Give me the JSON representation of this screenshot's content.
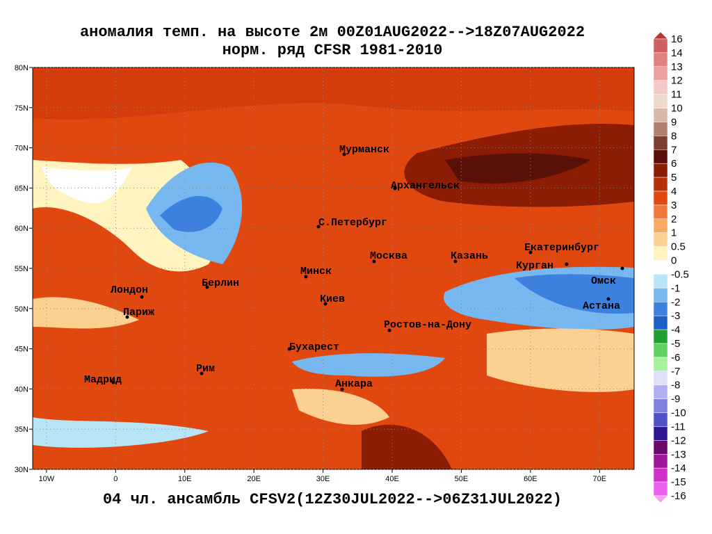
{
  "map": {
    "title": [
      "аномалия темп. на высоте 2м 00Z01AUG2022-->18Z07AUG2022",
      "норм. ряд CFSR 1981-2010"
    ],
    "caption": "04 чл. ансамбль CFSV2(12Z30JUL2022-->06Z31JUL2022)",
    "xlim": [
      -12,
      75
    ],
    "ylim": [
      30,
      80
    ],
    "xticks": [
      {
        "value": -10,
        "label": "10W"
      },
      0,
      {
        "value": 10,
        "label": "10E"
      },
      {
        "value": 20,
        "label": "20E"
      },
      {
        "value": 30,
        "label": "30E"
      },
      {
        "value": 40,
        "label": "40E"
      },
      {
        "value": 50,
        "label": "50E"
      },
      {
        "value": 60,
        "label": "60E"
      },
      {
        "value": 70,
        "label": "70E"
      }
    ],
    "yticks": [
      {
        "value": 30,
        "label": "30N"
      },
      {
        "value": 35,
        "label": "35N"
      },
      {
        "value": 40,
        "label": "40N"
      },
      {
        "value": 45,
        "label": "45N"
      },
      {
        "value": 50,
        "label": "50N"
      },
      {
        "value": 55,
        "label": "55N"
      },
      {
        "value": 60,
        "label": "60N"
      },
      {
        "value": 65,
        "label": "65N"
      },
      {
        "value": 70,
        "label": "70N"
      },
      {
        "value": 75,
        "label": "75N"
      },
      {
        "value": 80,
        "label": "80N"
      }
    ],
    "cities": [
      "Мурманск",
      "Архангельск",
      "С.Петербург",
      "Москва",
      "Казань",
      "Екатеринбург",
      "Курган",
      "Омск",
      "Астана",
      "Минск",
      "Берлин",
      "Лондон",
      "Париж",
      "Киев",
      "Ростов-на-Дону",
      "Бухарест",
      "Рим",
      "Мадрид",
      "Анкара"
    ],
    "colorbar": {
      "labels": [
        16,
        14,
        13,
        12,
        11,
        10,
        9,
        8,
        7,
        6,
        5,
        4,
        3,
        2,
        1,
        0.5,
        0,
        -0.5,
        -1,
        -2,
        -3,
        -4,
        -5,
        -6,
        -7,
        -8,
        -9,
        -10,
        -11,
        -12,
        -13,
        -14,
        -15,
        -16
      ],
      "colors": [
        "#b03a3a",
        "#d06060",
        "#e08080",
        "#eca0a0",
        "#f4c8c8",
        "#eed8cc",
        "#d8b8a8",
        "#b08070",
        "#7a4030",
        "#5a1008",
        "#8c1c04",
        "#b83008",
        "#e04810",
        "#f07838",
        "#f8a860",
        "#fcd090",
        "#fff4c0",
        "#ffffff",
        "#b8e4f8",
        "#78b8f0",
        "#3c80e0",
        "#1a60c8",
        "#20a030",
        "#60d060",
        "#a8f0a0",
        "#e0e0f8",
        "#b0b0f0",
        "#8080e0",
        "#5050c8",
        "#2c1890",
        "#6a0a6a",
        "#a01898",
        "#d030c8",
        "#f060f0",
        "#f8a0f0"
      ]
    }
  }
}
